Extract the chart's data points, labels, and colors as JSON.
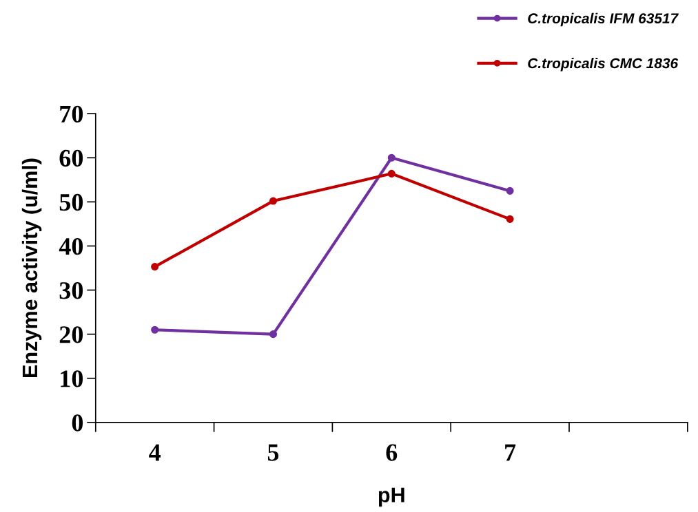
{
  "chart_data": {
    "type": "line",
    "xlabel": "pH",
    "ylabel": "Enzyme activity (u/ml)",
    "categories": [
      "4",
      "5",
      "6",
      "7",
      null
    ],
    "series": [
      {
        "name": "C.tropicalis IFM 63517",
        "color": "#7030a0",
        "values": [
          21,
          20,
          60,
          52.5,
          null
        ]
      },
      {
        "name": "C.tropicalis CMC 1836",
        "color": "#c00000",
        "values": [
          35.3,
          50.2,
          56.4,
          46.1,
          null
        ]
      }
    ],
    "ylim": [
      0,
      70
    ],
    "yticks": [
      0,
      10,
      20,
      30,
      40,
      50,
      60,
      70
    ],
    "grid": false,
    "legend": "top right",
    "marker": "circle",
    "line_style": "solid"
  }
}
